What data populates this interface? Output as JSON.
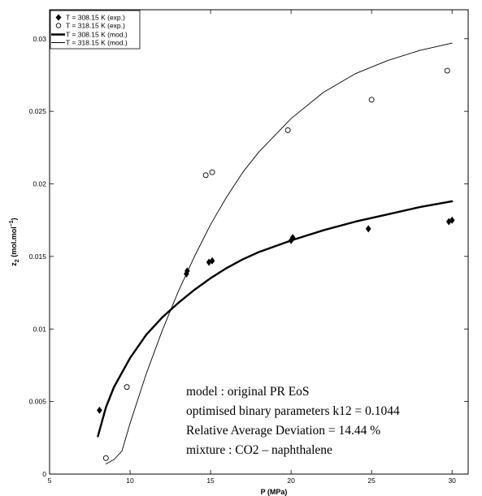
{
  "chart_data": {
    "type": "scatter",
    "xlabel": "P (MPa)",
    "ylabel_main": "z",
    "ylabel_sub": "2",
    "ylabel_rest": " (mol.mol",
    "ylabel_sup": "−1",
    "ylabel_close": ")",
    "xlim": [
      5,
      31
    ],
    "ylim": [
      0,
      0.032
    ],
    "xticks": [
      {
        "value": 5,
        "label": "5"
      },
      {
        "value": 10,
        "label": "10"
      },
      {
        "value": 15,
        "label": "15"
      },
      {
        "value": 20,
        "label": "20"
      },
      {
        "value": 25,
        "label": "25"
      },
      {
        "value": 30,
        "label": "30"
      }
    ],
    "yticks": [
      {
        "value": 0,
        "label": "0"
      },
      {
        "value": 0.005,
        "label": "0.005"
      },
      {
        "value": 0.01,
        "label": "0.01"
      },
      {
        "value": 0.015,
        "label": "0.015"
      },
      {
        "value": 0.02,
        "label": "0.02"
      },
      {
        "value": 0.025,
        "label": "0.025"
      },
      {
        "value": 0.03,
        "label": "0.03"
      }
    ],
    "grid": false,
    "legend_position": "top-left",
    "series": [
      {
        "name": "T = 308.15 K (exp.)",
        "kind": "points",
        "marker": "diamond",
        "points": [
          [
            8.1,
            0.0044
          ],
          [
            13.5,
            0.0138
          ],
          [
            13.55,
            0.014
          ],
          [
            14.9,
            0.0146
          ],
          [
            15.1,
            0.0147
          ],
          [
            20.0,
            0.0161
          ],
          [
            20.1,
            0.0163
          ],
          [
            24.8,
            0.0169
          ],
          [
            29.8,
            0.0174
          ],
          [
            30.0,
            0.0175
          ]
        ]
      },
      {
        "name": "T = 318.15 K (exp.)",
        "kind": "points",
        "marker": "circle",
        "points": [
          [
            8.5,
            0.0011
          ],
          [
            9.8,
            0.006
          ],
          [
            14.7,
            0.0206
          ],
          [
            15.1,
            0.0208
          ],
          [
            19.8,
            0.0237
          ],
          [
            25.0,
            0.0258
          ],
          [
            29.7,
            0.0278
          ]
        ]
      },
      {
        "name": "T = 308.15 K (mod.)",
        "kind": "line",
        "weight": "thick",
        "points": [
          [
            8.0,
            0.0026
          ],
          [
            8.5,
            0.0046
          ],
          [
            9.0,
            0.006
          ],
          [
            10.0,
            0.008
          ],
          [
            11.0,
            0.0096
          ],
          [
            12.0,
            0.0108
          ],
          [
            13.0,
            0.0118
          ],
          [
            14.0,
            0.0127
          ],
          [
            15.0,
            0.0135
          ],
          [
            16.0,
            0.0142
          ],
          [
            17.0,
            0.0148
          ],
          [
            18.0,
            0.0153
          ],
          [
            20.0,
            0.0161
          ],
          [
            22.0,
            0.0168
          ],
          [
            24.0,
            0.0174
          ],
          [
            26.0,
            0.0179
          ],
          [
            28.0,
            0.0184
          ],
          [
            30.0,
            0.0188
          ]
        ]
      },
      {
        "name": "T = 318.15 K (mod.)",
        "kind": "line",
        "weight": "thin",
        "points": [
          [
            8.5,
            0.0007
          ],
          [
            9.0,
            0.001
          ],
          [
            9.5,
            0.0016
          ],
          [
            10.0,
            0.0035
          ],
          [
            11.0,
            0.0069
          ],
          [
            12.0,
            0.0099
          ],
          [
            13.0,
            0.0126
          ],
          [
            14.0,
            0.015
          ],
          [
            15.0,
            0.0172
          ],
          [
            16.0,
            0.0191
          ],
          [
            17.0,
            0.0208
          ],
          [
            18.0,
            0.0222
          ],
          [
            20.0,
            0.0245
          ],
          [
            22.0,
            0.0263
          ],
          [
            24.0,
            0.0276
          ],
          [
            26.0,
            0.0285
          ],
          [
            28.0,
            0.0292
          ],
          [
            30.0,
            0.0297
          ]
        ]
      }
    ],
    "annotations": [
      "model : original PR EoS",
      "optimised binary parameters k12 = 0.1044",
      "Relative Average Deviation = 14.44 %",
      "mixture : CO2 – naphthalene"
    ]
  }
}
